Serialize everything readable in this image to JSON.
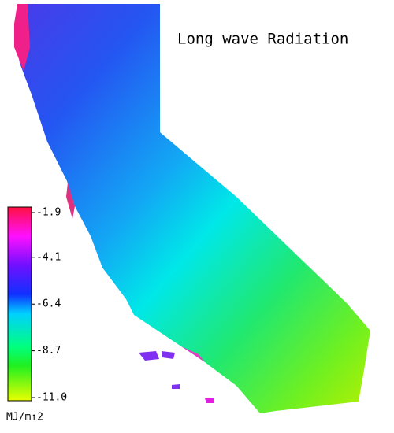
{
  "title": "Long wave Radiation",
  "colorbar": {
    "ticks": [
      -1.9,
      -4.1,
      -6.4,
      -8.7,
      {
        "value": -11,
        "label": "-11.0"
      }
    ],
    "unit": "MJ/m↑2"
  }
}
